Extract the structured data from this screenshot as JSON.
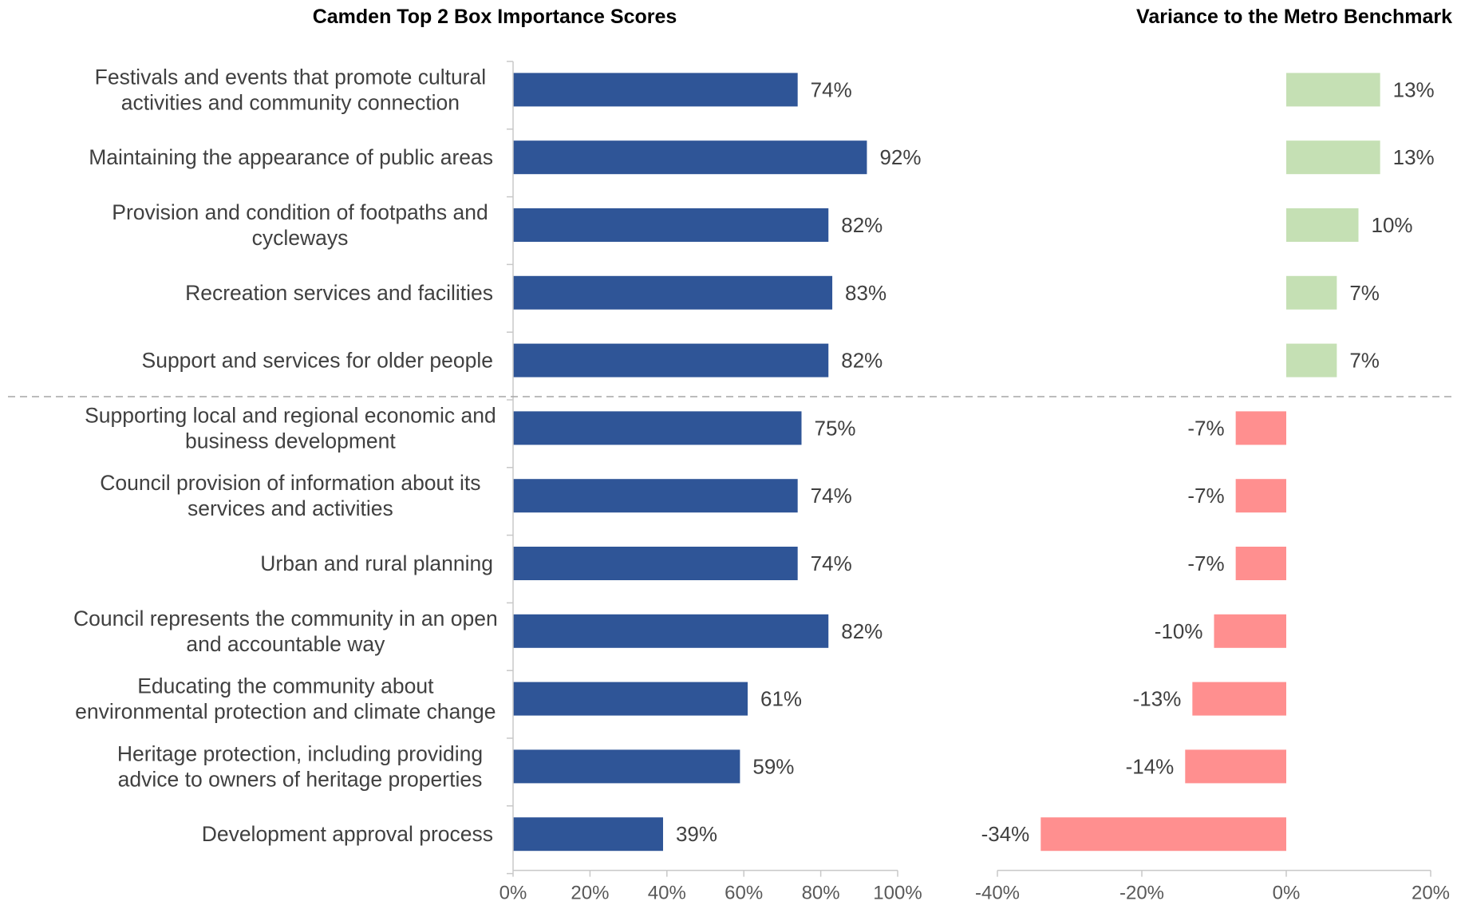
{
  "chart_data": [
    {
      "type": "bar",
      "orientation": "horizontal",
      "title": "Camden Top 2 Box Importance Scores",
      "categories": [
        [
          "Festivals and events that promote cultural",
          "activities and community connection"
        ],
        [
          "Maintaining the appearance of public areas"
        ],
        [
          "Provision and condition of footpaths and",
          "cycleways"
        ],
        [
          "Recreation services and facilities"
        ],
        [
          "Support and services for older people"
        ],
        [
          "Supporting local and regional economic and",
          "business development"
        ],
        [
          "Council provision of information about its",
          "services and activities"
        ],
        [
          "Urban and rural planning"
        ],
        [
          "Council represents the community in an open",
          "and accountable way"
        ],
        [
          "Educating the community about",
          "environmental protection and climate change"
        ],
        [
          "Heritage protection, including providing",
          "advice to owners of heritage properties"
        ],
        [
          "Development approval process"
        ]
      ],
      "values": [
        74,
        92,
        82,
        83,
        82,
        75,
        74,
        74,
        82,
        61,
        59,
        39
      ],
      "data_labels": [
        "74%",
        "92%",
        "82%",
        "83%",
        "82%",
        "75%",
        "74%",
        "74%",
        "82%",
        "61%",
        "59%",
        "39%"
      ],
      "xlim": [
        0,
        100
      ],
      "x_ticks": [
        0,
        20,
        40,
        60,
        80,
        100
      ],
      "x_tick_labels": [
        "0%",
        "20%",
        "40%",
        "60%",
        "80%",
        "100%"
      ],
      "bar_color": "#2f5597",
      "grid": false
    },
    {
      "type": "bar",
      "orientation": "horizontal",
      "title": "Variance to the Metro Benchmark",
      "values": [
        13,
        13,
        10,
        7,
        7,
        -7,
        -7,
        -7,
        -10,
        -13,
        -14,
        -34
      ],
      "data_labels": [
        "13%",
        "13%",
        "10%",
        "7%",
        "7%",
        "-7%",
        "-7%",
        "-7%",
        "-10%",
        "-13%",
        "-14%",
        "-34%"
      ],
      "xlim": [
        -40,
        20
      ],
      "x_ticks": [
        -40,
        -20,
        0,
        20
      ],
      "x_tick_labels": [
        "-40%",
        "-20%",
        "0%",
        "20%"
      ],
      "positive_color": "#c5e0b4",
      "negative_color": "#ff8f8f",
      "grid": false
    }
  ],
  "divider_after_index": 4,
  "colors": {
    "axis": "#c8c8c8",
    "divider": "#a6a6a6",
    "text": "#404040"
  }
}
